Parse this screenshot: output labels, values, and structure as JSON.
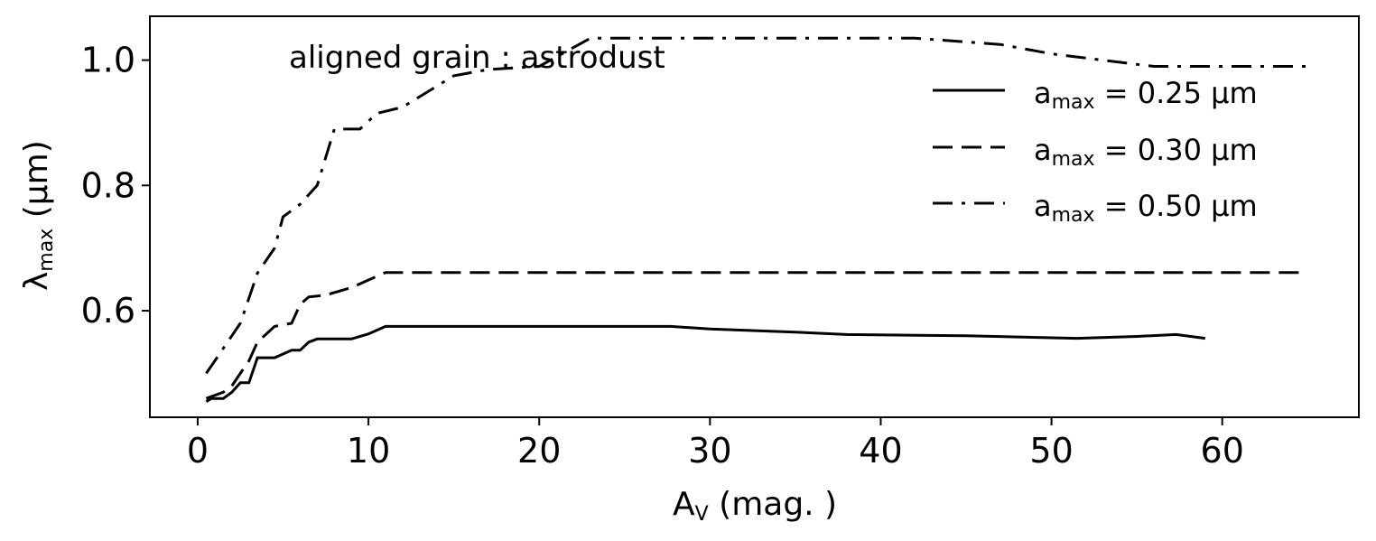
{
  "chart_data": {
    "type": "line",
    "annotation": "aligned grain : astrodust",
    "xlabel": {
      "main": "A",
      "sub": "V",
      "rest": " (mag. )"
    },
    "ylabel": {
      "main": "λ",
      "sub": "max",
      "rest": " (μm)"
    },
    "xlim": [
      -2.8,
      68
    ],
    "ylim": [
      0.43,
      1.07
    ],
    "x_ticks": [
      0,
      10,
      20,
      30,
      40,
      50,
      60
    ],
    "x_tick_labels": [
      "0",
      "10",
      "20",
      "30",
      "40",
      "50",
      "60"
    ],
    "y_ticks": [
      0.6,
      0.8,
      1.0
    ],
    "y_tick_labels": [
      "0.6",
      "0.8",
      "1.0"
    ],
    "grid": false,
    "legend_position": "upper-right",
    "series": [
      {
        "name": "a_max = 0.25 μm",
        "legend": {
          "prefix": "a",
          "sub": "max",
          "text": " = 0.25 μm"
        },
        "dash": "solid",
        "color": "#000000",
        "x": [
          0.5,
          0.8,
          1.5,
          2.0,
          2.5,
          3.0,
          3.5,
          4.5,
          5.5,
          6.0,
          6.5,
          7.0,
          8.0,
          9.0,
          10.0,
          11.0,
          15.0,
          20.0,
          27.7,
          30.0,
          35.0,
          38.0,
          45.0,
          51.5,
          55.0,
          57.3,
          59.0
        ],
        "y": [
          0.455,
          0.46,
          0.46,
          0.47,
          0.485,
          0.485,
          0.525,
          0.525,
          0.537,
          0.537,
          0.55,
          0.555,
          0.555,
          0.555,
          0.563,
          0.575,
          0.575,
          0.575,
          0.575,
          0.571,
          0.566,
          0.562,
          0.56,
          0.556,
          0.559,
          0.562,
          0.556
        ]
      },
      {
        "name": "a_max = 0.30 μm",
        "legend": {
          "prefix": "a",
          "sub": "max",
          "text": " = 0.30 μm"
        },
        "dash": "dashed",
        "color": "#000000",
        "x": [
          0.5,
          1.0,
          1.5,
          2.0,
          2.5,
          3.0,
          3.5,
          4.5,
          5.5,
          6.0,
          6.5,
          7.5,
          9.0,
          10.5,
          11.0,
          20.0,
          30.0,
          40.0,
          50.0,
          60.0,
          65.0
        ],
        "y": [
          0.46,
          0.465,
          0.47,
          0.48,
          0.5,
          0.52,
          0.55,
          0.575,
          0.58,
          0.61,
          0.622,
          0.625,
          0.637,
          0.655,
          0.661,
          0.661,
          0.661,
          0.661,
          0.661,
          0.661,
          0.661
        ]
      },
      {
        "name": "a_max = 0.50 μm",
        "legend": {
          "prefix": "a",
          "sub": "max",
          "text": " = 0.50 μm"
        },
        "dash": "dashdot",
        "color": "#000000",
        "x": [
          0.5,
          1.0,
          1.5,
          2.0,
          2.5,
          3.0,
          3.5,
          4.5,
          5.0,
          6.0,
          7.0,
          8.0,
          9.5,
          10.5,
          12.0,
          15.0,
          17.0,
          20.0,
          22.0,
          23.0,
          27.5,
          37.0,
          42.0,
          47.0,
          50.0,
          53.0,
          56.0,
          60.0,
          65.0
        ],
        "y": [
          0.5,
          0.52,
          0.54,
          0.56,
          0.58,
          0.62,
          0.66,
          0.7,
          0.75,
          0.77,
          0.8,
          0.89,
          0.89,
          0.915,
          0.925,
          0.975,
          0.985,
          0.99,
          1.02,
          1.035,
          1.035,
          1.035,
          1.035,
          1.025,
          1.01,
          1.0,
          0.99,
          0.99,
          0.99
        ]
      }
    ]
  }
}
